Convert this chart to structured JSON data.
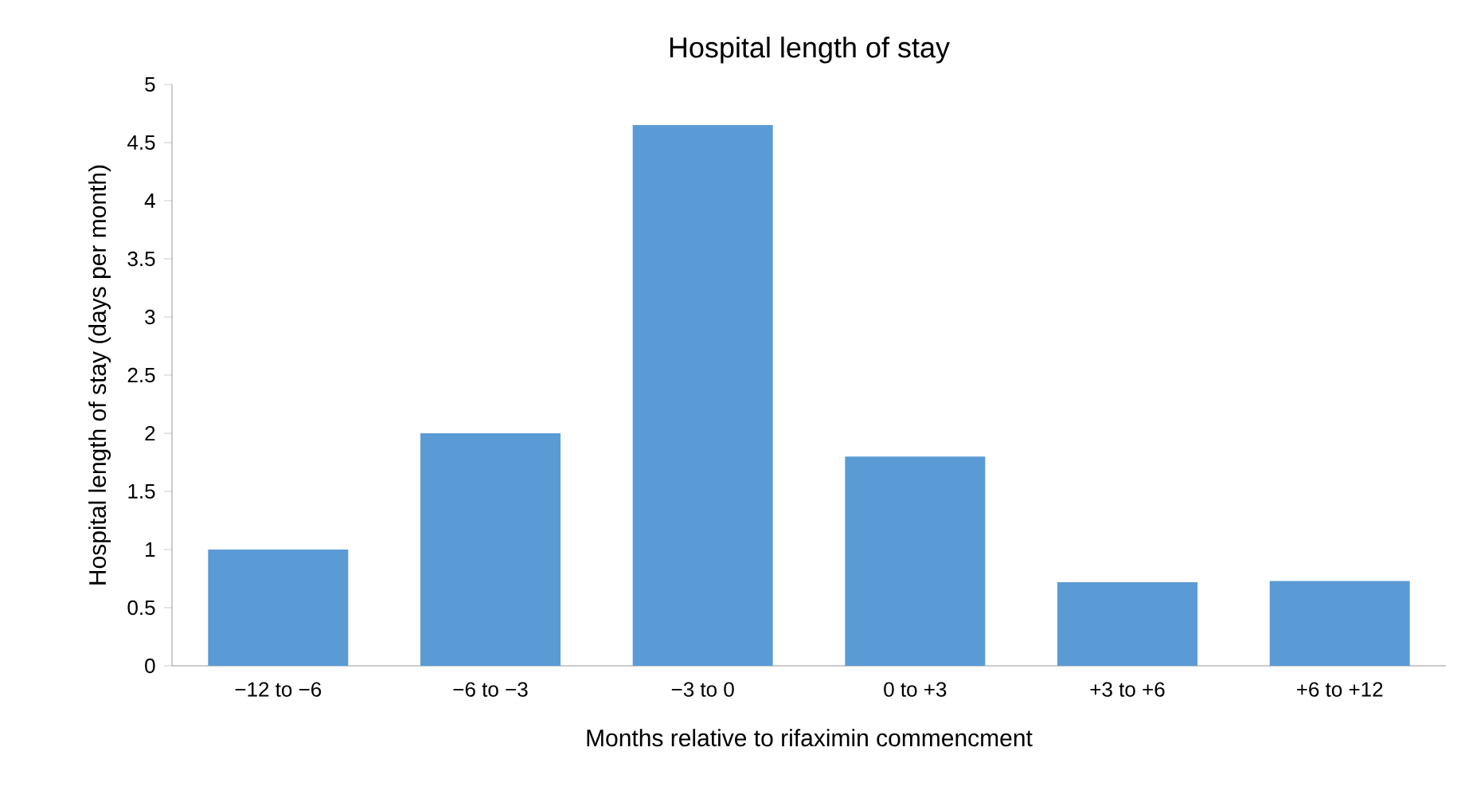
{
  "chart_data": {
    "type": "bar",
    "title": "Hospital length of stay",
    "xlabel": "Months relative to rifaximin commencment",
    "ylabel": "Hospital length of stay (days per month)",
    "categories": [
      "−12 to −6",
      "−6 to −3",
      "−3 to 0",
      "0 to +3",
      "+3 to +6",
      "+6 to +12"
    ],
    "values": [
      1.0,
      2.0,
      4.65,
      1.8,
      0.72,
      0.73
    ],
    "color": "#5b9bd5",
    "ylim": [
      0,
      5
    ],
    "yticks": [
      0,
      0.5,
      1,
      1.5,
      2,
      2.5,
      3,
      3.5,
      4,
      4.5,
      5
    ],
    "grid": false
  }
}
